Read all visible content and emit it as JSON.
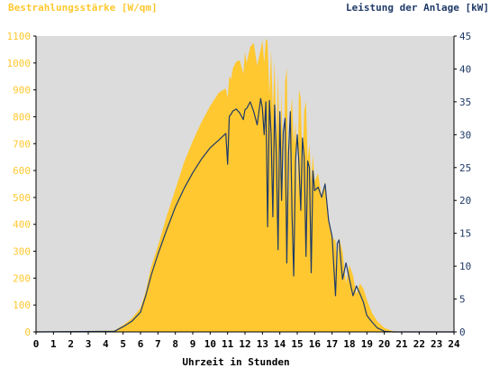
{
  "chart_data": {
    "type": "area",
    "ylabel_left": "Bestrahlungsstärke [W/qm]",
    "ylabel_right": "Leistung der Anlage [kW]",
    "xlabel": "Uhrzeit in Stunden",
    "xlim": [
      0,
      24
    ],
    "ylim_left": [
      0,
      1100
    ],
    "ylim_right": [
      0,
      45
    ],
    "x_ticks": [
      "0",
      "1",
      "2",
      "3",
      "4",
      "5",
      "6",
      "7",
      "8",
      "9",
      "10",
      "11",
      "12",
      "13",
      "14",
      "15",
      "16",
      "17",
      "18",
      "19",
      "20",
      "21",
      "22",
      "23",
      "24"
    ],
    "y_ticks_left": [
      "0",
      "100",
      "200",
      "300",
      "400",
      "500",
      "600",
      "700",
      "800",
      "900",
      "1000",
      "1100"
    ],
    "y_ticks_right": [
      "0",
      "5",
      "10",
      "15",
      "20",
      "25",
      "30",
      "35",
      "40",
      "45"
    ],
    "grid": false,
    "colors": {
      "irradiance_fill": "#FFC830",
      "power_line": "#1F3A68",
      "plot_background": "#DCDCDC",
      "left_axis_text": "#FFC830",
      "right_axis_text": "#1F3A68",
      "axis_text": "#000000"
    },
    "series": [
      {
        "name": "Bestrahlungsstärke [W/qm]",
        "axis": "left",
        "x": [
          0,
          4.5,
          5.0,
          5.5,
          6.0,
          6.3,
          6.6,
          7.0,
          7.5,
          8.0,
          8.5,
          9.0,
          9.5,
          10.0,
          10.5,
          10.9,
          11.0,
          11.1,
          11.2,
          11.3,
          11.5,
          11.7,
          11.9,
          12.0,
          12.1,
          12.3,
          12.5,
          12.7,
          12.9,
          13.0,
          13.1,
          13.2,
          13.3,
          13.4,
          13.5,
          13.6,
          13.7,
          13.8,
          13.9,
          14.0,
          14.1,
          14.2,
          14.3,
          14.4,
          14.5,
          14.6,
          14.7,
          14.8,
          14.9,
          15.0,
          15.1,
          15.2,
          15.3,
          15.4,
          15.5,
          15.6,
          15.7,
          15.8,
          15.9,
          16.0,
          16.2,
          16.4,
          16.6,
          16.8,
          17.0,
          17.2,
          17.3,
          17.4,
          17.6,
          17.8,
          18.0,
          18.2,
          18.4,
          18.6,
          18.8,
          19.0,
          19.3,
          19.6,
          20.0,
          20.5,
          21.0,
          24
        ],
        "y": [
          0,
          5,
          25,
          50,
          90,
          150,
          240,
          320,
          430,
          530,
          630,
          710,
          780,
          840,
          890,
          905,
          870,
          950,
          940,
          980,
          1005,
          1010,
          960,
          1040,
          1000,
          1060,
          1075,
          990,
          1050,
          1085,
          1000,
          1090,
          1080,
          880,
          1050,
          820,
          1010,
          700,
          960,
          600,
          900,
          500,
          930,
          980,
          450,
          800,
          870,
          700,
          780,
          480,
          900,
          870,
          600,
          820,
          860,
          640,
          700,
          560,
          660,
          560,
          590,
          500,
          560,
          420,
          350,
          340,
          240,
          350,
          300,
          180,
          250,
          210,
          140,
          180,
          160,
          120,
          70,
          40,
          15,
          3,
          0,
          0
        ]
      },
      {
        "name": "Leistung der Anlage [kW]",
        "axis": "right",
        "x": [
          0,
          4.5,
          5.0,
          5.5,
          6.0,
          6.3,
          6.6,
          7.0,
          7.5,
          8.0,
          8.5,
          9.0,
          9.5,
          10.0,
          10.5,
          10.9,
          11.0,
          11.1,
          11.2,
          11.3,
          11.5,
          11.7,
          11.9,
          12.0,
          12.1,
          12.3,
          12.5,
          12.7,
          12.9,
          13.0,
          13.1,
          13.2,
          13.3,
          13.4,
          13.5,
          13.6,
          13.7,
          13.8,
          13.9,
          14.0,
          14.1,
          14.2,
          14.3,
          14.4,
          14.5,
          14.6,
          14.7,
          14.8,
          14.9,
          15.0,
          15.1,
          15.2,
          15.3,
          15.4,
          15.5,
          15.6,
          15.7,
          15.8,
          15.9,
          16.0,
          16.2,
          16.4,
          16.6,
          16.8,
          17.0,
          17.2,
          17.3,
          17.4,
          17.6,
          17.8,
          18.0,
          18.2,
          18.4,
          18.6,
          18.8,
          19.0,
          19.3,
          19.6,
          20.0,
          20.5,
          21.0,
          24
        ],
        "y": [
          0,
          0.1,
          0.8,
          1.6,
          3.0,
          5.5,
          8.5,
          11.8,
          15.5,
          19.0,
          21.8,
          24.2,
          26.3,
          28.0,
          29.2,
          30.2,
          25.5,
          32.8,
          33.1,
          33.6,
          33.9,
          33.3,
          32.3,
          33.8,
          34.0,
          35.0,
          33.5,
          31.5,
          35.5,
          34.0,
          30.0,
          35.0,
          16.0,
          35.2,
          30.0,
          17.5,
          34.5,
          27.0,
          12.5,
          33.5,
          20.0,
          30.5,
          32.5,
          10.5,
          27.0,
          33.5,
          18.0,
          8.5,
          26.0,
          30.0,
          25.5,
          18.5,
          29.5,
          26.5,
          11.5,
          26.0,
          25.0,
          9.0,
          24.5,
          21.5,
          22.0,
          20.5,
          22.5,
          17.0,
          14.5,
          5.5,
          13.5,
          14.0,
          8.0,
          10.5,
          8.0,
          5.5,
          7.0,
          5.8,
          4.5,
          2.5,
          1.5,
          0.6,
          0.1,
          0,
          0,
          0
        ]
      }
    ]
  }
}
